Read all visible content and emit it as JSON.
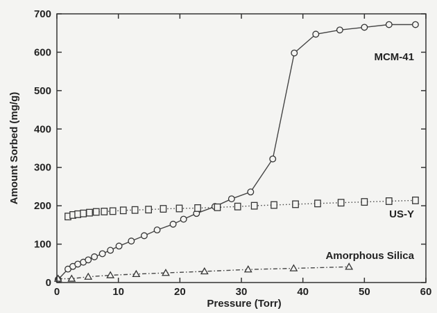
{
  "chart_data": {
    "type": "line",
    "title": "",
    "xlabel": "Pressure (Torr)",
    "ylabel": "Amount Sorbed (mg/g)",
    "xlim": [
      0,
      60
    ],
    "ylim": [
      0,
      700
    ],
    "xticks": [
      0,
      10,
      20,
      30,
      40,
      50,
      60
    ],
    "yticks": [
      0,
      100,
      200,
      300,
      400,
      500,
      600,
      700
    ],
    "grid": false,
    "legend": "none (series labeled inline)",
    "series": [
      {
        "name": "MCM-41",
        "marker": "circle",
        "line_style": "solid",
        "x": [
          0.2,
          1.8,
          2.6,
          3.4,
          4.3,
          5.1,
          6.1,
          7.4,
          8.7,
          10.1,
          12.1,
          14.2,
          16.3,
          18.9,
          20.6,
          22.7,
          25.7,
          28.4,
          31.5,
          35.1,
          38.6,
          42.1,
          46,
          50,
          54,
          58.3
        ],
        "y": [
          8,
          35,
          42,
          48,
          53,
          59,
          67,
          75,
          84,
          95,
          108,
          122,
          137,
          152,
          165,
          180,
          198,
          218,
          236,
          322,
          598,
          647,
          658,
          665,
          672,
          672
        ]
      },
      {
        "name": "US-Y",
        "marker": "square",
        "line_style": "dotted",
        "x": [
          1.8,
          2.6,
          3.4,
          4.3,
          5.3,
          6.4,
          7.7,
          9.1,
          10.8,
          12.7,
          14.9,
          17.3,
          19.9,
          22.9,
          26.1,
          29.4,
          32.1,
          35.3,
          38.8,
          42.4,
          46.2,
          50,
          54,
          58.3
        ],
        "y": [
          172,
          176,
          178,
          180,
          182,
          184,
          185,
          186,
          188,
          189,
          190,
          192,
          193,
          194,
          196,
          198,
          200,
          202,
          204,
          206,
          208,
          210,
          212,
          214
        ]
      },
      {
        "name": "Amorphous Silica",
        "marker": "triangle",
        "line_style": "dash-dot",
        "x": [
          0.2,
          2.4,
          5.1,
          8.7,
          12.9,
          17.7,
          24,
          31.1,
          38.5,
          47.5
        ],
        "y": [
          10,
          10,
          15,
          19,
          22,
          25,
          29,
          34,
          37,
          41
        ]
      }
    ]
  }
}
